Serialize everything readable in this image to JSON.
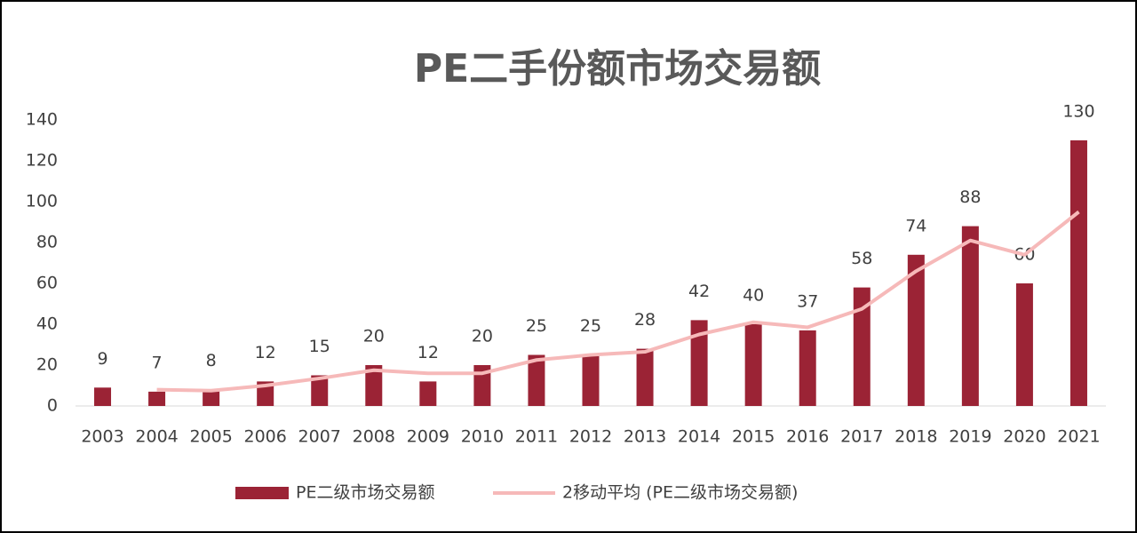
{
  "chart_data": {
    "type": "bar-line",
    "title": "PE二手份额市场交易额",
    "categories": [
      "2003",
      "2004",
      "2005",
      "2006",
      "2007",
      "2008",
      "2009",
      "2010",
      "2011",
      "2012",
      "2013",
      "2014",
      "2015",
      "2016",
      "2017",
      "2018",
      "2019",
      "2020",
      "2021"
    ],
    "series": [
      {
        "name": "PE二级市场交易额",
        "type": "bar",
        "color": "#9b2335",
        "values": [
          9,
          7,
          8,
          12,
          15,
          20,
          12,
          20,
          25,
          25,
          28,
          42,
          40,
          37,
          58,
          74,
          88,
          60,
          130
        ]
      },
      {
        "name": "2移动平均 (PE二级市场交易额)",
        "type": "line",
        "color": "#f6b9b9",
        "values": [
          null,
          8,
          7.5,
          10,
          13.5,
          17.5,
          16,
          16,
          22.5,
          25,
          26.5,
          35,
          41,
          38.5,
          47.5,
          66,
          81,
          74,
          95
        ]
      }
    ],
    "ylim": [
      0,
      140
    ],
    "yticks": [
      0,
      20,
      40,
      60,
      80,
      100,
      120,
      140
    ],
    "grid": false,
    "legend": "bottom"
  }
}
